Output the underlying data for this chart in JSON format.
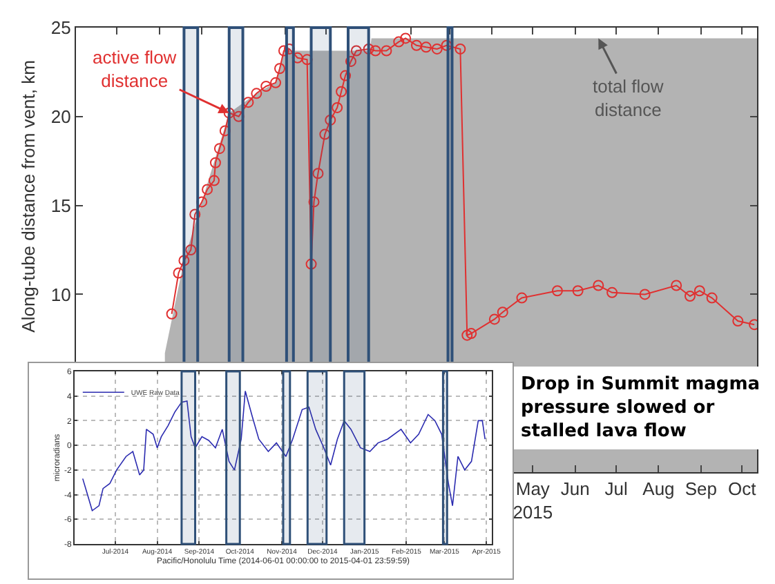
{
  "chart_data": [
    {
      "type": "line",
      "ylabel": "Along-tube distance from vent, km",
      "xlim": [
        "2014-06-01",
        "2015-10-12"
      ],
      "ylim": [
        0,
        25
      ],
      "yticks": [
        10,
        15,
        20,
        25
      ],
      "xticks": [
        {
          "value": "2014-07-01",
          "label": null
        },
        {
          "value": "2014-08-01",
          "label": null
        },
        {
          "value": "2014-09-01",
          "label": null
        },
        {
          "value": "2014-10-01",
          "label": null
        },
        {
          "value": "2014-11-01",
          "label": null
        },
        {
          "value": "2014-12-01",
          "label": null
        },
        {
          "value": "2015-01-01",
          "label": null
        },
        {
          "value": "2015-02-01",
          "label": null
        },
        {
          "value": "2015-03-01",
          "label": null
        },
        {
          "value": "2015-04-01",
          "label": null
        },
        {
          "value": "2015-05-01",
          "label": "May\n2015"
        },
        {
          "value": "2015-06-01",
          "label": "Jun"
        },
        {
          "value": "2015-07-01",
          "label": "Jul"
        },
        {
          "value": "2015-08-01",
          "label": "Aug"
        },
        {
          "value": "2015-09-01",
          "label": "Sep"
        },
        {
          "value": "2015-10-01",
          "label": "Oct"
        }
      ],
      "series": [
        {
          "type": "area",
          "color": "#b3b3b3",
          "x": [
            "2014-08-05",
            "2014-08-19",
            "2014-09-01",
            "2014-09-21",
            "2014-10-11",
            "2014-10-25",
            "2014-10-31",
            "2015-01-02",
            "2015-01-03",
            "2015-10-12"
          ],
          "values": [
            6.7,
            11.9,
            15.2,
            20.2,
            21.3,
            21.9,
            23.7,
            23.7,
            24.4,
            24.4
          ]
        },
        {
          "color": "#e03030",
          "marker": "circle",
          "x": [
            "2014-08-10",
            "2014-08-15",
            "2014-08-19",
            "2014-08-24",
            "2014-08-27",
            "2014-09-01",
            "2014-09-05",
            "2014-09-10",
            "2014-09-11",
            "2014-09-14",
            "2014-09-18",
            "2014-09-21",
            "2014-09-28",
            "2014-10-05",
            "2014-10-11",
            "2014-10-18",
            "2014-10-25",
            "2014-10-28",
            "2014-10-31",
            "2014-11-04",
            "2014-11-10",
            "2014-11-17",
            "2014-11-20",
            "2014-11-22",
            "2014-11-25",
            "2014-11-30",
            "2014-12-04",
            "2014-12-09",
            "2014-12-12",
            "2014-12-15",
            "2014-12-19",
            "2014-12-23",
            "2015-01-01",
            "2015-01-06",
            "2015-01-14",
            "2015-01-23",
            "2015-01-28",
            "2015-02-05",
            "2015-02-12",
            "2015-02-20",
            "2015-02-27",
            "2015-03-09",
            "2015-03-14",
            "2015-03-17",
            "2015-04-03",
            "2015-04-09",
            "2015-04-23",
            "2015-05-19",
            "2015-06-03",
            "2015-06-18",
            "2015-06-28",
            "2015-07-22",
            "2015-08-14",
            "2015-08-24",
            "2015-08-31",
            "2015-09-09",
            "2015-09-28",
            "2015-10-10"
          ],
          "values": [
            8.9,
            11.2,
            11.9,
            12.5,
            14.5,
            15.2,
            15.9,
            16.4,
            17.4,
            18.2,
            19.2,
            20.2,
            20.0,
            20.8,
            21.3,
            21.7,
            21.9,
            22.7,
            23.7,
            23.8,
            23.3,
            23.2,
            11.7,
            15.2,
            16.8,
            19.0,
            19.8,
            20.5,
            21.4,
            22.3,
            23.1,
            23.7,
            23.8,
            23.7,
            23.7,
            24.2,
            24.4,
            24.0,
            23.9,
            23.8,
            24.0,
            23.8,
            7.7,
            7.8,
            8.6,
            9.0,
            9.8,
            10.2,
            10.2,
            10.5,
            10.1,
            10.0,
            10.5,
            9.9,
            10.2,
            9.8,
            8.5,
            8.3
          ]
        }
      ],
      "bands": [
        {
          "axis": "x",
          "from": "2014-08-19",
          "to": "2014-08-29",
          "color": "#2f5078"
        },
        {
          "axis": "x",
          "from": "2014-09-21",
          "to": "2014-10-01",
          "color": "#2f5078"
        },
        {
          "axis": "x",
          "from": "2014-11-02",
          "to": "2014-11-07",
          "color": "#2f5078"
        },
        {
          "axis": "x",
          "from": "2014-11-20",
          "to": "2014-12-04",
          "color": "#2f5078"
        },
        {
          "axis": "x",
          "from": "2014-12-17",
          "to": "2015-01-01",
          "color": "#2f5078"
        },
        {
          "axis": "x",
          "from": "2015-02-28",
          "to": "2015-03-03",
          "color": "#2f5078"
        }
      ],
      "annotations": [
        {
          "text": "active flow distance",
          "x": "2014-09-21",
          "y": 20.2
        },
        {
          "text": "total flow distance",
          "x": "2015-06-18",
          "y": 24.4
        },
        "Drop in Summit magma pressure slowed or stalled lava flow"
      ],
      "grid": false,
      "legend": false
    },
    {
      "type": "line",
      "xlabel": "Pacific/Honolulu Time (2014-06-01 00:00:00 to 2015-04-01 23:59:59)",
      "ylabel": "microradians",
      "xlim": [
        "2014-06-01",
        "2015-04-05"
      ],
      "ylim": [
        -8,
        6
      ],
      "yticks": [
        -8,
        -6,
        -4,
        -2,
        0,
        2,
        4,
        6
      ],
      "xticks": [
        {
          "value": "2014-07-01",
          "label": "Jul-2014"
        },
        {
          "value": "2014-08-01",
          "label": "Aug-2014"
        },
        {
          "value": "2014-09-01",
          "label": "Sep-2014"
        },
        {
          "value": "2014-10-01",
          "label": "Oct-2014"
        },
        {
          "value": "2014-11-01",
          "label": "Nov-2014"
        },
        {
          "value": "2014-12-01",
          "label": "Dec-2014"
        },
        {
          "value": "2015-01-01",
          "label": "Jan-2015"
        },
        {
          "value": "2015-02-01",
          "label": "Feb-2015"
        },
        {
          "value": "2015-03-01",
          "label": "Mar-2015"
        },
        {
          "value": "2015-04-01",
          "label": "Apr-2015"
        }
      ],
      "series": [
        {
          "name": "UWE Raw Data",
          "color": "#2b2bb0",
          "x": [
            "2014-06-07",
            "2014-06-10",
            "2014-06-14",
            "2014-06-19",
            "2014-06-22",
            "2014-06-27",
            "2014-07-02",
            "2014-07-09",
            "2014-07-14",
            "2014-07-19",
            "2014-07-22",
            "2014-07-24",
            "2014-07-29",
            "2014-08-01",
            "2014-08-04",
            "2014-08-09",
            "2014-08-14",
            "2014-08-19",
            "2014-08-23",
            "2014-08-26",
            "2014-08-29",
            "2014-09-03",
            "2014-09-08",
            "2014-09-13",
            "2014-09-18",
            "2014-09-23",
            "2014-09-27",
            "2014-10-02",
            "2014-10-05",
            "2014-10-10",
            "2014-10-15",
            "2014-10-22",
            "2014-10-28",
            "2014-11-04",
            "2014-11-09",
            "2014-11-16",
            "2014-11-21",
            "2014-11-26",
            "2014-12-02",
            "2014-12-07",
            "2014-12-12",
            "2014-12-17",
            "2014-12-22",
            "2014-12-29",
            "2015-01-05",
            "2015-01-11",
            "2015-01-18",
            "2015-01-28",
            "2015-02-04",
            "2015-02-10",
            "2015-02-17",
            "2015-02-22",
            "2015-02-27",
            "2015-03-04",
            "2015-03-07",
            "2015-03-11",
            "2015-03-16",
            "2015-03-21",
            "2015-03-26",
            "2015-03-29",
            "2015-03-31"
          ],
          "values": [
            -2.7,
            -3.8,
            -5.3,
            -4.9,
            -3.5,
            -3.1,
            -2.0,
            -0.9,
            -0.5,
            -2.4,
            -2.0,
            1.3,
            0.9,
            -0.2,
            0.7,
            1.6,
            2.7,
            3.5,
            3.6,
            0.7,
            -0.2,
            0.7,
            0.4,
            -0.2,
            1.3,
            -1.3,
            -2.0,
            0.5,
            4.4,
            2.4,
            0.5,
            -0.5,
            0.2,
            -0.9,
            0.5,
            2.9,
            3.1,
            1.3,
            -0.2,
            -1.6,
            0.5,
            2.0,
            1.3,
            -0.2,
            -0.5,
            0.2,
            0.5,
            1.3,
            0.2,
            0.9,
            2.5,
            2.0,
            0.9,
            -3.1,
            -4.9,
            -0.9,
            -2.0,
            -1.3,
            2.0,
            2.0,
            0.5
          ]
        }
      ],
      "bands": [
        {
          "axis": "x",
          "from": "2014-08-19",
          "to": "2014-08-29",
          "color": "#2f5078"
        },
        {
          "axis": "x",
          "from": "2014-09-21",
          "to": "2014-10-01",
          "color": "#2f5078"
        },
        {
          "axis": "x",
          "from": "2014-11-02",
          "to": "2014-11-07",
          "color": "#2f5078"
        },
        {
          "axis": "x",
          "from": "2014-11-20",
          "to": "2014-12-04",
          "color": "#2f5078"
        },
        {
          "axis": "x",
          "from": "2014-12-17",
          "to": "2015-01-01",
          "color": "#2f5078"
        },
        {
          "axis": "x",
          "from": "2015-02-28",
          "to": "2015-03-03",
          "color": "#2f5078"
        }
      ],
      "grid": true,
      "legend": "top left"
    }
  ]
}
